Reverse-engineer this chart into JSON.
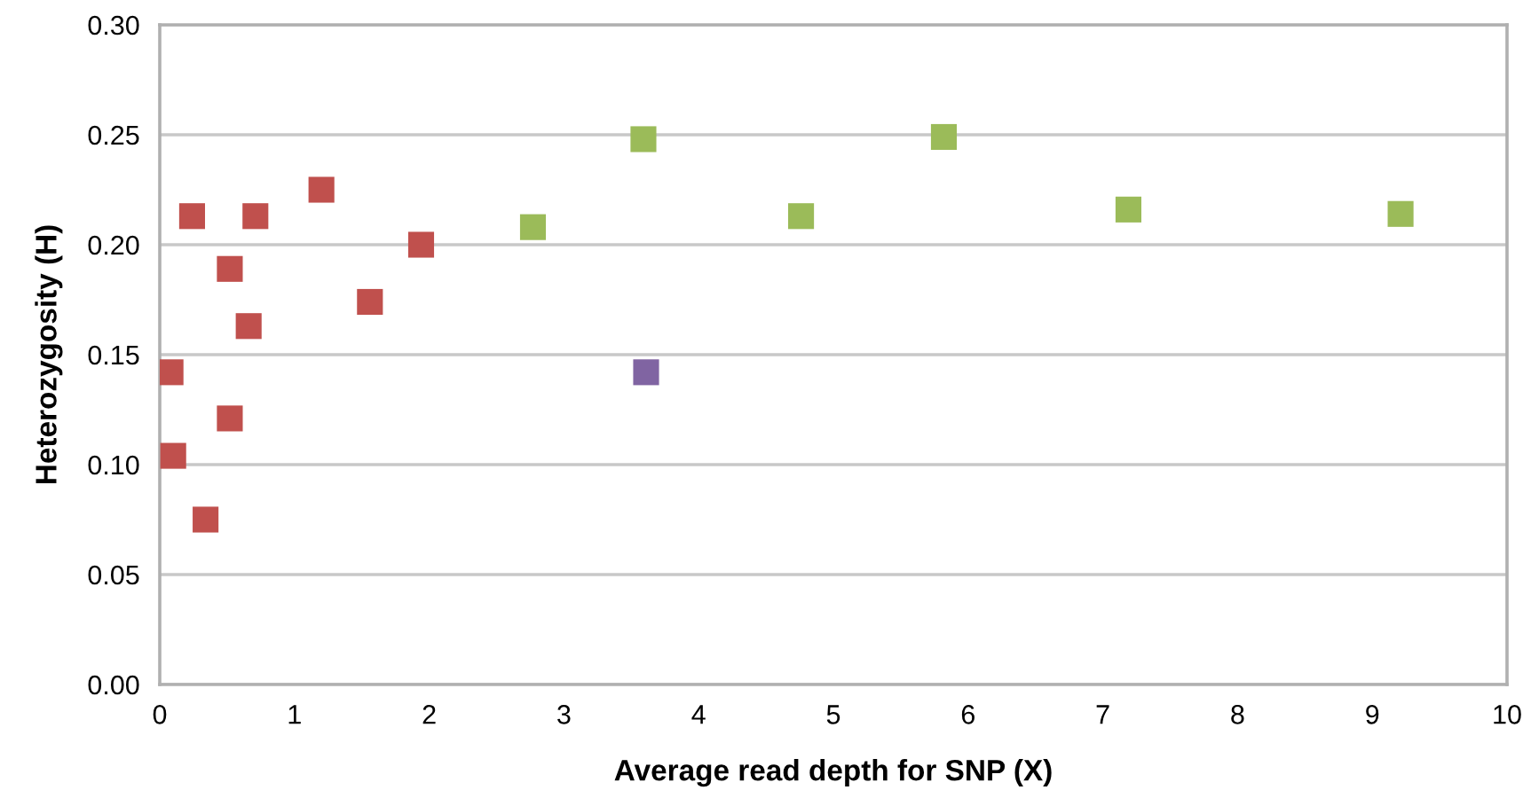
{
  "chart_data": {
    "type": "scatter",
    "xlabel": "Average read depth for SNP (X)",
    "ylabel": "Heterozygosity (H)",
    "xlim": [
      0,
      10
    ],
    "xticks": [
      0,
      1,
      2,
      3,
      4,
      5,
      6,
      7,
      8,
      9,
      10
    ],
    "ylim": [
      0,
      0.3
    ],
    "yticks": [
      {
        "value": 0,
        "label": "0.00"
      },
      {
        "value": 0.05,
        "label": "0.05"
      },
      {
        "value": 0.1,
        "label": "0.10"
      },
      {
        "value": 0.15,
        "label": "0.15"
      },
      {
        "value": 0.2,
        "label": "0.20"
      },
      {
        "value": 0.25,
        "label": "0.25"
      },
      {
        "value": 0.3,
        "label": "0.30"
      }
    ],
    "grid": "y",
    "marker": "square",
    "series": [
      {
        "color": "#c0504d",
        "x": [
          0.08,
          0.1,
          0.24,
          0.34,
          0.52,
          0.52,
          0.66,
          0.71,
          1.2,
          1.56,
          1.94
        ],
        "values": [
          0.142,
          0.104,
          0.213,
          0.075,
          0.189,
          0.121,
          0.163,
          0.213,
          0.225,
          0.174,
          0.2
        ]
      },
      {
        "color": "#9bbb59",
        "x": [
          2.77,
          3.59,
          4.76,
          5.82,
          7.19,
          9.21
        ],
        "values": [
          0.208,
          0.248,
          0.213,
          0.249,
          0.216,
          0.214
        ]
      },
      {
        "color": "#8064a2",
        "x": [
          3.61
        ],
        "values": [
          0.142
        ]
      }
    ]
  }
}
